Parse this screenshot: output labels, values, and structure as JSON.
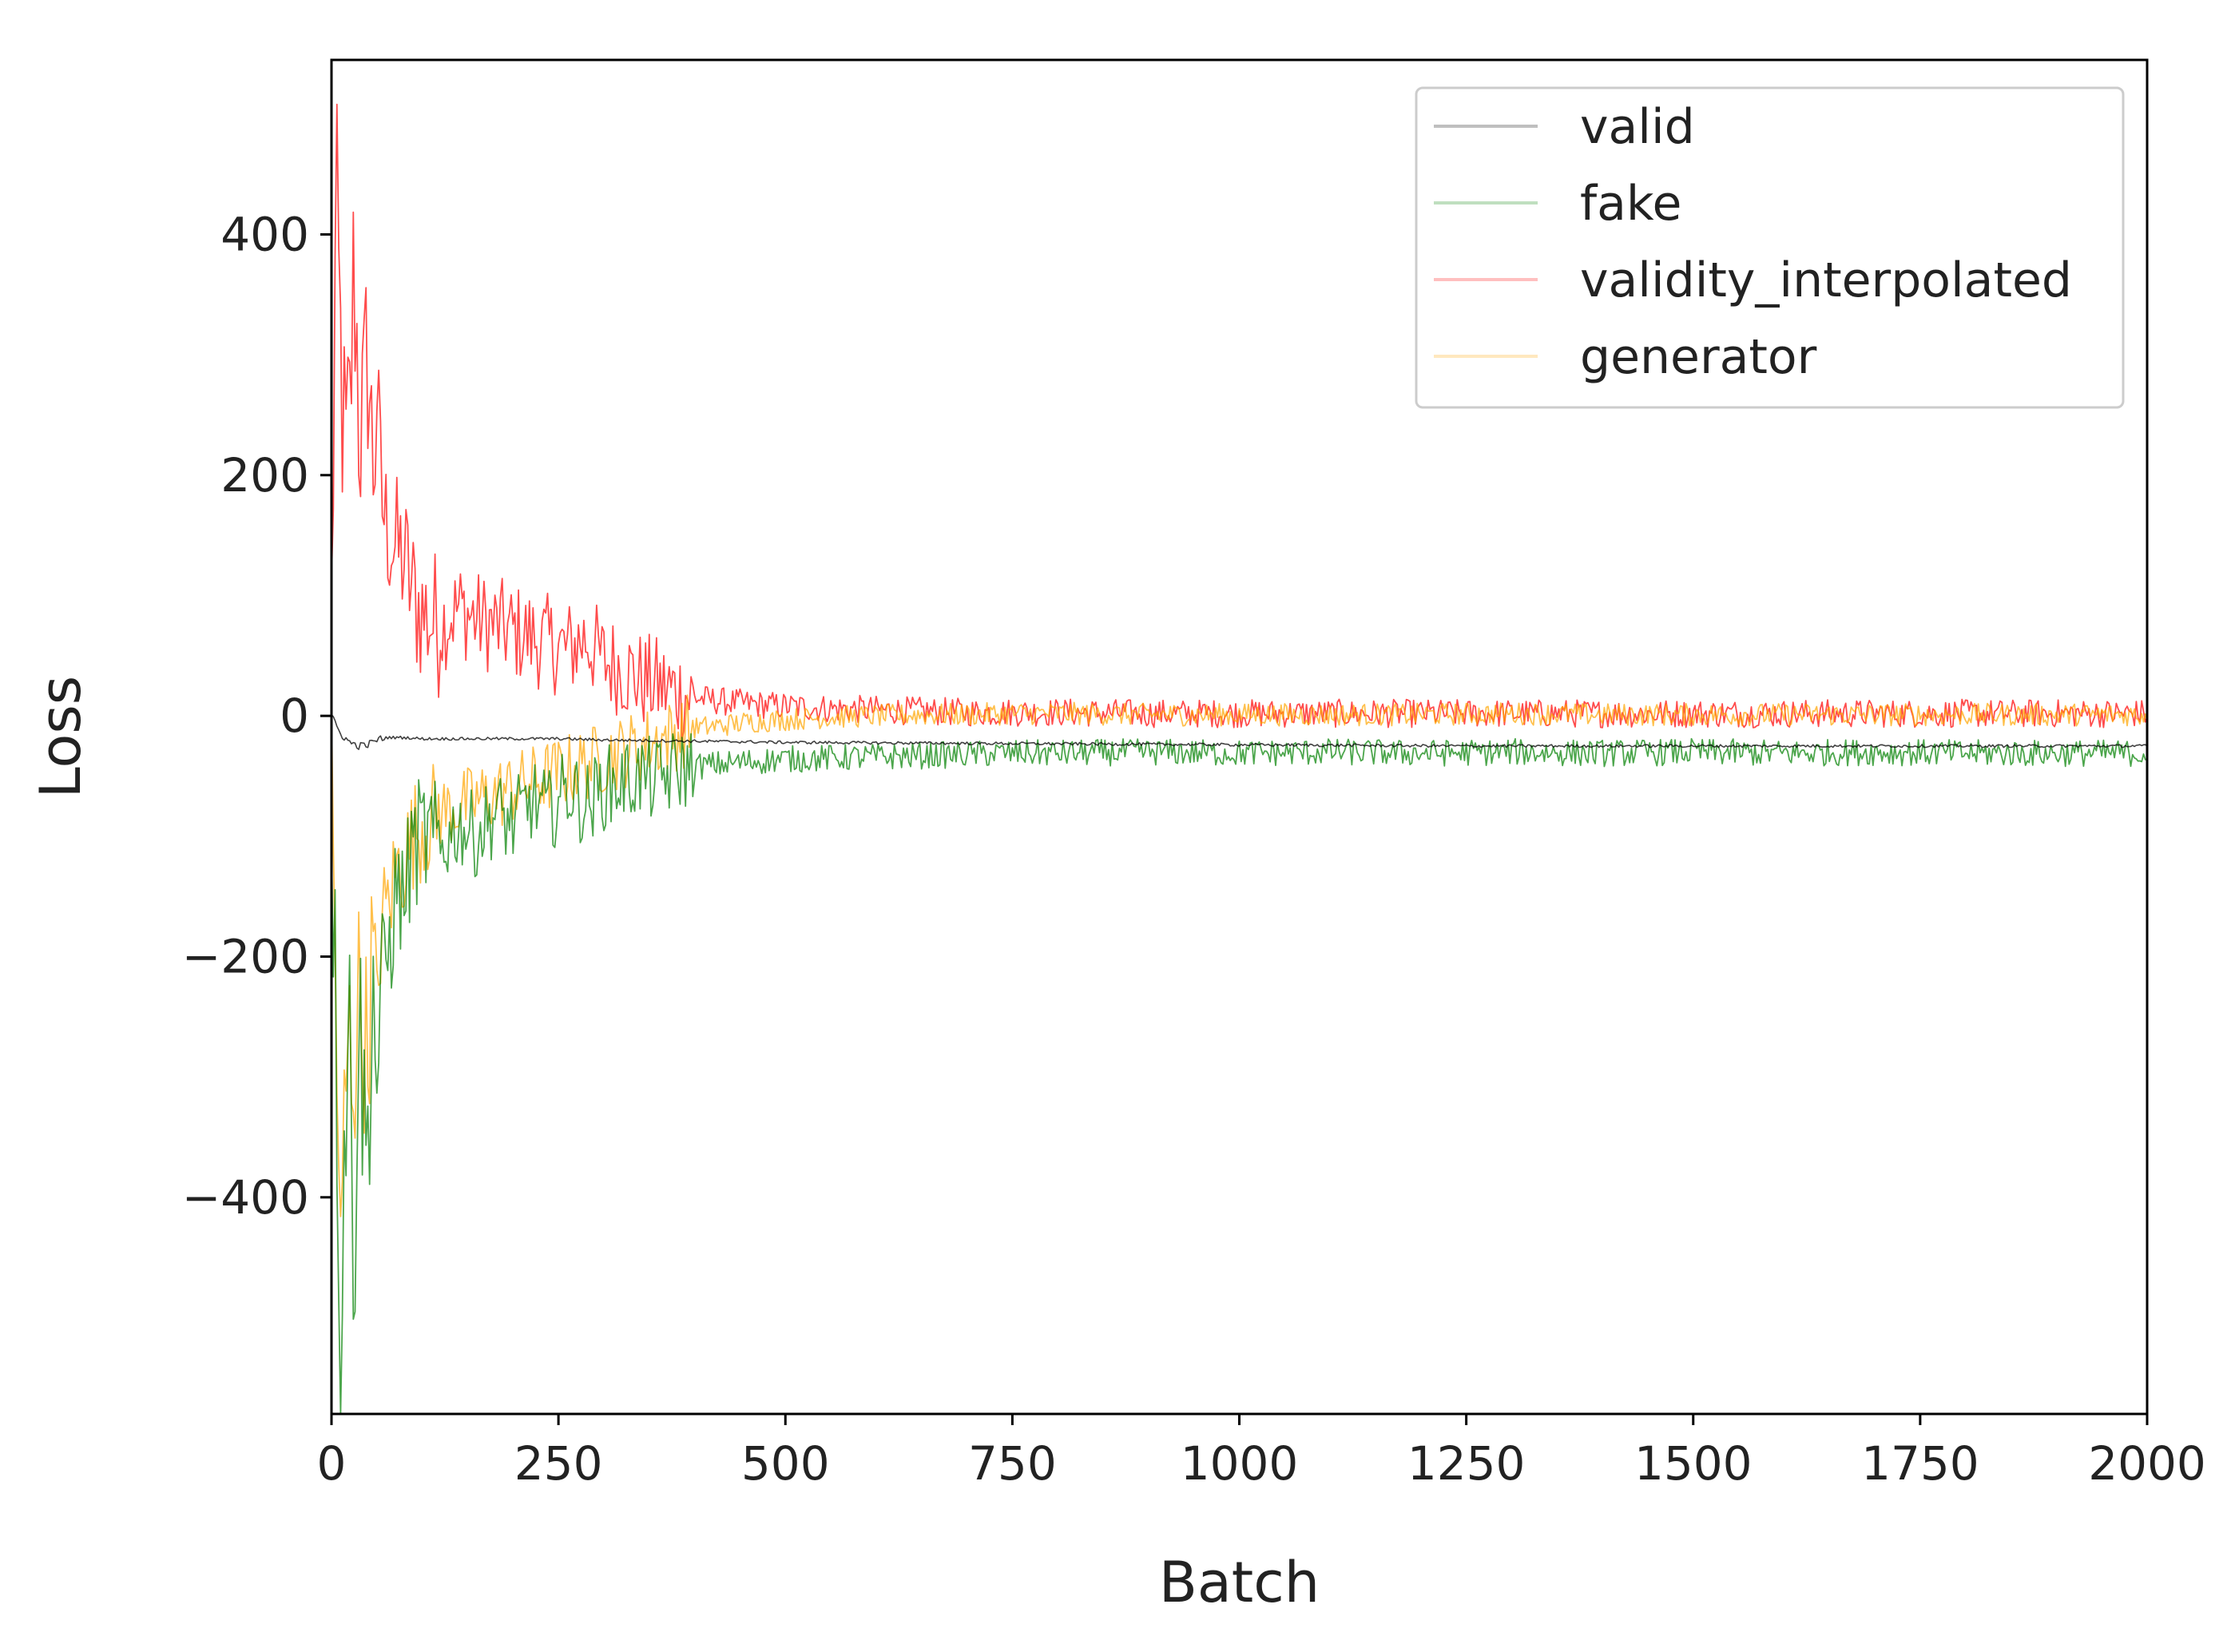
{
  "chart_data": {
    "type": "line",
    "title": "",
    "xlabel": "Batch",
    "ylabel": "Loss",
    "xlim": [
      0,
      2000
    ],
    "ylim": [
      -580,
      545
    ],
    "grid": false,
    "legend_position": "top-right",
    "x_ticks": [
      0,
      250,
      500,
      750,
      1000,
      1250,
      1500,
      1750,
      2000
    ],
    "x_tick_labels": [
      "0",
      "250",
      "500",
      "750",
      "1000",
      "1250",
      "1500",
      "1750",
      "2000"
    ],
    "y_ticks": [
      400,
      200,
      0,
      -200,
      -400
    ],
    "y_tick_labels": [
      "400",
      "200",
      "0",
      "−200",
      "−400"
    ],
    "series": [
      {
        "name": "valid",
        "color": "#000000",
        "x": [
          0,
          5,
          10,
          20,
          30,
          40,
          50,
          60,
          80,
          100,
          150,
          200,
          250,
          300,
          400,
          500,
          750,
          1000,
          1250,
          1500,
          1750,
          2000
        ],
        "y": [
          0,
          -8,
          -15,
          -22,
          -25,
          -24,
          -20,
          -18,
          -18,
          -19,
          -19,
          -19,
          -19,
          -20,
          -21,
          -22,
          -23,
          -24,
          -25,
          -25,
          -25,
          -25
        ]
      },
      {
        "name": "fake",
        "color": "#008000",
        "x": [
          0,
          5,
          10,
          15,
          20,
          25,
          30,
          35,
          40,
          45,
          50,
          55,
          60,
          65,
          70,
          80,
          90,
          100,
          120,
          140,
          160,
          180,
          200,
          220,
          240,
          260,
          280,
          300,
          320,
          340,
          360,
          380,
          400,
          430,
          460,
          500,
          550,
          600,
          650,
          700,
          750,
          800,
          900,
          1000,
          1100,
          1200,
          1300,
          1400,
          1500,
          1600,
          1700,
          1800,
          1900,
          2000
        ],
        "y": [
          -60,
          -260,
          -540,
          -320,
          -260,
          -470,
          -240,
          -320,
          -370,
          -200,
          -310,
          -220,
          -200,
          -190,
          -150,
          -150,
          -110,
          -100,
          -110,
          -90,
          -100,
          -80,
          -90,
          -70,
          -80,
          -60,
          -75,
          -60,
          -55,
          -50,
          -55,
          -45,
          -42,
          -40,
          -38,
          -36,
          -35,
          -34,
          -33,
          -32,
          -31,
          -31,
          -30,
          -31,
          -30,
          -31,
          -30,
          -31,
          -30,
          -31,
          -30,
          -31,
          -31,
          -31
        ]
      },
      {
        "name": "validity_interpolated",
        "color": "#ff0000",
        "x": [
          0,
          5,
          10,
          15,
          20,
          25,
          30,
          35,
          40,
          45,
          50,
          55,
          60,
          65,
          70,
          80,
          90,
          100,
          120,
          140,
          160,
          180,
          200,
          220,
          240,
          260,
          280,
          300,
          320,
          340,
          360,
          380,
          400,
          430,
          460,
          500,
          550,
          600,
          650,
          700,
          750,
          800,
          900,
          1000,
          1100,
          1200,
          1300,
          1400,
          1500,
          1600,
          1700,
          1800,
          1900,
          2000
        ],
        "y": [
          80,
          420,
          300,
          200,
          240,
          380,
          260,
          230,
          310,
          200,
          270,
          180,
          160,
          150,
          140,
          130,
          100,
          85,
          75,
          90,
          80,
          75,
          70,
          65,
          60,
          55,
          65,
          45,
          40,
          30,
          25,
          20,
          15,
          12,
          10,
          8,
          6,
          5,
          4,
          3,
          3,
          3,
          2,
          2,
          2,
          2,
          2,
          2,
          2,
          2,
          2,
          2,
          2,
          2
        ]
      },
      {
        "name": "generator",
        "color": "#ffa500",
        "x": [
          0,
          5,
          10,
          15,
          20,
          25,
          30,
          35,
          40,
          45,
          50,
          55,
          60,
          65,
          70,
          80,
          90,
          100,
          120,
          140,
          160,
          180,
          200,
          220,
          240,
          260,
          280,
          300,
          320,
          340,
          360,
          380,
          400,
          430,
          460,
          500,
          550,
          600,
          650,
          700,
          750,
          800,
          900,
          1000,
          1100,
          1200,
          1300,
          1400,
          1500,
          1600,
          1700,
          1800,
          1900,
          2000
        ],
        "y": [
          -40,
          -240,
          -470,
          -310,
          -270,
          -300,
          -230,
          -260,
          -280,
          -190,
          -250,
          -170,
          -160,
          -150,
          -130,
          -120,
          -100,
          -90,
          -80,
          -75,
          -70,
          -65,
          -60,
          -55,
          -50,
          -45,
          -40,
          -35,
          -30,
          -25,
          -20,
          -15,
          -10,
          -8,
          -5,
          -3,
          -1,
          0,
          1,
          1,
          2,
          2,
          1,
          1,
          1,
          1,
          2,
          1,
          1,
          1,
          1,
          1,
          1,
          1
        ]
      }
    ]
  }
}
